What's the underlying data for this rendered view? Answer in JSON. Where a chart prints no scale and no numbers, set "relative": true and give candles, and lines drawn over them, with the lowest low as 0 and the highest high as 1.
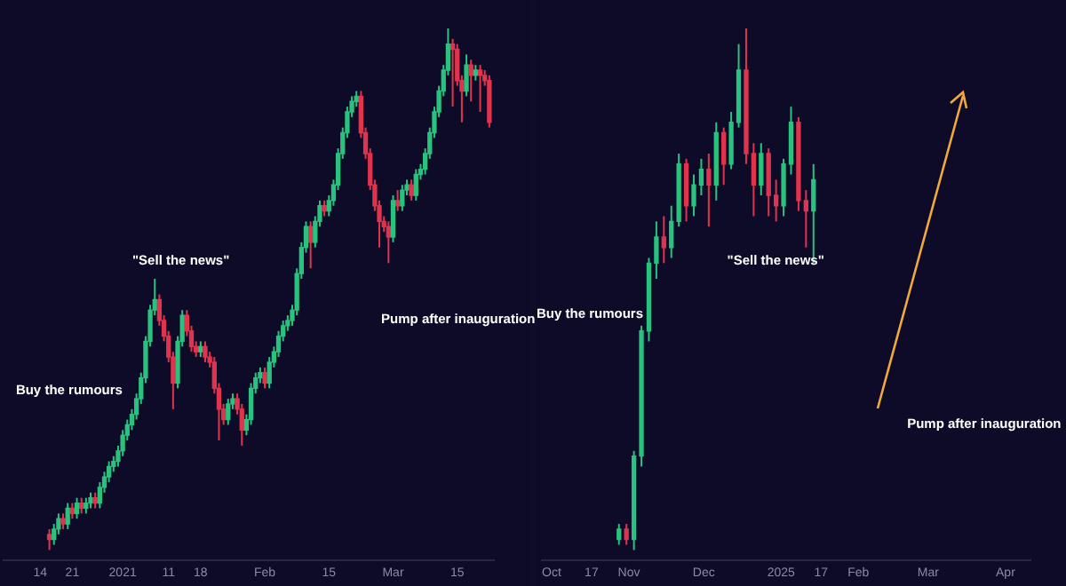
{
  "chart_data": [
    {
      "type": "candlestick",
      "relative": true,
      "xlim": [
        "2020-12-06",
        "2021-03-23"
      ],
      "xticks": [
        {
          "value": "2020-12-14",
          "label": "14"
        },
        {
          "value": "2020-12-21",
          "label": "21"
        },
        {
          "value": "2021-01-01",
          "label": "2021"
        },
        {
          "value": "2021-01-11",
          "label": "11"
        },
        {
          "value": "2021-01-18",
          "label": "18"
        },
        {
          "value": "2021-02-01",
          "label": "Feb"
        },
        {
          "value": "2021-02-15",
          "label": "15"
        },
        {
          "value": "2021-03-01",
          "label": "Mar"
        },
        {
          "value": "2021-03-15",
          "label": "15"
        }
      ],
      "annotations": [
        "Buy the rumours",
        "\"Sell the news\"",
        "Pump after inauguration"
      ],
      "x": [
        "2020-12-16",
        "2020-12-17",
        "2020-12-18",
        "2020-12-19",
        "2020-12-20",
        "2020-12-21",
        "2020-12-22",
        "2020-12-23",
        "2020-12-24",
        "2020-12-25",
        "2020-12-26",
        "2020-12-27",
        "2020-12-28",
        "2020-12-29",
        "2020-12-30",
        "2020-12-31",
        "2021-01-01",
        "2021-01-02",
        "2021-01-03",
        "2021-01-04",
        "2021-01-05",
        "2021-01-06",
        "2021-01-07",
        "2021-01-08",
        "2021-01-09",
        "2021-01-10",
        "2021-01-11",
        "2021-01-12",
        "2021-01-13",
        "2021-01-14",
        "2021-01-15",
        "2021-01-16",
        "2021-01-17",
        "2021-01-18",
        "2021-01-19",
        "2021-01-20",
        "2021-01-21",
        "2021-01-22",
        "2021-01-23",
        "2021-01-24",
        "2021-01-25",
        "2021-01-26",
        "2021-01-27",
        "2021-01-28",
        "2021-01-29",
        "2021-01-30",
        "2021-01-31",
        "2021-02-01",
        "2021-02-02",
        "2021-02-03",
        "2021-02-04",
        "2021-02-05",
        "2021-02-06",
        "2021-02-07",
        "2021-02-08",
        "2021-02-09",
        "2021-02-10",
        "2021-02-11",
        "2021-02-12",
        "2021-02-13",
        "2021-02-14",
        "2021-02-15",
        "2021-02-16",
        "2021-02-17",
        "2021-02-18",
        "2021-02-19",
        "2021-02-20",
        "2021-02-21",
        "2021-02-22",
        "2021-02-23",
        "2021-02-24",
        "2021-02-25",
        "2021-02-26",
        "2021-02-27",
        "2021-02-28",
        "2021-03-01",
        "2021-03-02",
        "2021-03-03",
        "2021-03-04",
        "2021-03-05",
        "2021-03-06",
        "2021-03-07",
        "2021-03-08",
        "2021-03-09",
        "2021-03-10",
        "2021-03-11",
        "2021-03-12",
        "2021-03-13",
        "2021-03-14",
        "2021-03-15",
        "2021-03-16",
        "2021-03-17",
        "2021-03-18",
        "2021-03-19",
        "2021-03-20",
        "2021-03-21",
        "2021-03-22"
      ],
      "ohlc": [
        [
          0.03,
          0.04,
          0,
          0.02
        ],
        [
          0.02,
          0.05,
          0.01,
          0.04
        ],
        [
          0.04,
          0.07,
          0.03,
          0.06
        ],
        [
          0.06,
          0.07,
          0.04,
          0.05
        ],
        [
          0.05,
          0.09,
          0.04,
          0.08
        ],
        [
          0.08,
          0.09,
          0.06,
          0.07
        ],
        [
          0.07,
          0.1,
          0.06,
          0.09
        ],
        [
          0.09,
          0.1,
          0.07,
          0.08
        ],
        [
          0.08,
          0.1,
          0.07,
          0.09
        ],
        [
          0.09,
          0.11,
          0.08,
          0.1
        ],
        [
          0.1,
          0.11,
          0.08,
          0.09
        ],
        [
          0.09,
          0.13,
          0.08,
          0.12
        ],
        [
          0.12,
          0.15,
          0.11,
          0.14
        ],
        [
          0.14,
          0.17,
          0.13,
          0.16
        ],
        [
          0.16,
          0.18,
          0.15,
          0.17
        ],
        [
          0.17,
          0.2,
          0.16,
          0.19
        ],
        [
          0.19,
          0.23,
          0.18,
          0.22
        ],
        [
          0.22,
          0.25,
          0.21,
          0.24
        ],
        [
          0.24,
          0.27,
          0.23,
          0.26
        ],
        [
          0.26,
          0.3,
          0.25,
          0.29
        ],
        [
          0.29,
          0.34,
          0.28,
          0.33
        ],
        [
          0.33,
          0.41,
          0.32,
          0.4
        ],
        [
          0.4,
          0.47,
          0.39,
          0.46
        ],
        [
          0.46,
          0.52,
          0.45,
          0.48
        ],
        [
          0.48,
          0.49,
          0.43,
          0.44
        ],
        [
          0.44,
          0.45,
          0.4,
          0.41
        ],
        [
          0.41,
          0.42,
          0.36,
          0.37
        ],
        [
          0.37,
          0.38,
          0.27,
          0.32
        ],
        [
          0.32,
          0.41,
          0.31,
          0.4
        ],
        [
          0.4,
          0.46,
          0.39,
          0.45
        ],
        [
          0.45,
          0.46,
          0.41,
          0.42
        ],
        [
          0.42,
          0.43,
          0.38,
          0.39
        ],
        [
          0.39,
          0.4,
          0.37,
          0.38
        ],
        [
          0.38,
          0.4,
          0.37,
          0.39
        ],
        [
          0.39,
          0.4,
          0.36,
          0.37
        ],
        [
          0.37,
          0.38,
          0.35,
          0.36
        ],
        [
          0.36,
          0.37,
          0.3,
          0.31
        ],
        [
          0.31,
          0.32,
          0.21,
          0.27
        ],
        [
          0.27,
          0.28,
          0.24,
          0.25
        ],
        [
          0.25,
          0.29,
          0.24,
          0.28
        ],
        [
          0.28,
          0.3,
          0.27,
          0.29
        ],
        [
          0.29,
          0.3,
          0.26,
          0.27
        ],
        [
          0.27,
          0.28,
          0.2,
          0.23
        ],
        [
          0.23,
          0.26,
          0.22,
          0.25
        ],
        [
          0.25,
          0.32,
          0.24,
          0.31
        ],
        [
          0.31,
          0.34,
          0.3,
          0.33
        ],
        [
          0.33,
          0.35,
          0.32,
          0.34
        ],
        [
          0.34,
          0.35,
          0.31,
          0.32
        ],
        [
          0.32,
          0.37,
          0.31,
          0.36
        ],
        [
          0.36,
          0.39,
          0.35,
          0.38
        ],
        [
          0.38,
          0.42,
          0.37,
          0.41
        ],
        [
          0.41,
          0.44,
          0.4,
          0.43
        ],
        [
          0.43,
          0.45,
          0.42,
          0.44
        ],
        [
          0.44,
          0.47,
          0.43,
          0.46
        ],
        [
          0.46,
          0.54,
          0.45,
          0.53
        ],
        [
          0.53,
          0.59,
          0.52,
          0.58
        ],
        [
          0.58,
          0.63,
          0.57,
          0.62
        ],
        [
          0.62,
          0.63,
          0.54,
          0.59
        ],
        [
          0.59,
          0.64,
          0.58,
          0.63
        ],
        [
          0.63,
          0.67,
          0.62,
          0.66
        ],
        [
          0.66,
          0.67,
          0.64,
          0.65
        ],
        [
          0.65,
          0.68,
          0.64,
          0.67
        ],
        [
          0.67,
          0.71,
          0.66,
          0.7
        ],
        [
          0.7,
          0.77,
          0.69,
          0.76
        ],
        [
          0.76,
          0.81,
          0.75,
          0.8
        ],
        [
          0.8,
          0.85,
          0.79,
          0.84
        ],
        [
          0.84,
          0.87,
          0.83,
          0.86
        ],
        [
          0.86,
          0.88,
          0.85,
          0.87
        ],
        [
          0.87,
          0.88,
          0.79,
          0.8
        ],
        [
          0.8,
          0.81,
          0.75,
          0.76
        ],
        [
          0.76,
          0.77,
          0.69,
          0.7
        ],
        [
          0.7,
          0.71,
          0.65,
          0.66
        ],
        [
          0.66,
          0.67,
          0.58,
          0.63
        ],
        [
          0.63,
          0.64,
          0.61,
          0.62
        ],
        [
          0.62,
          0.63,
          0.55,
          0.6
        ],
        [
          0.6,
          0.68,
          0.59,
          0.67
        ],
        [
          0.67,
          0.69,
          0.65,
          0.66
        ],
        [
          0.66,
          0.7,
          0.65,
          0.69
        ],
        [
          0.69,
          0.71,
          0.68,
          0.7
        ],
        [
          0.7,
          0.71,
          0.67,
          0.68
        ],
        [
          0.68,
          0.73,
          0.67,
          0.72
        ],
        [
          0.72,
          0.74,
          0.71,
          0.73
        ],
        [
          0.73,
          0.77,
          0.72,
          0.76
        ],
        [
          0.76,
          0.81,
          0.75,
          0.8
        ],
        [
          0.8,
          0.85,
          0.79,
          0.84
        ],
        [
          0.84,
          0.89,
          0.83,
          0.88
        ],
        [
          0.88,
          0.93,
          0.87,
          0.92
        ],
        [
          0.92,
          1,
          0.91,
          0.97
        ],
        [
          0.97,
          0.98,
          0.85,
          0.96
        ],
        [
          0.96,
          0.97,
          0.89,
          0.9
        ],
        [
          0.9,
          0.91,
          0.82,
          0.88
        ],
        [
          0.88,
          0.95,
          0.87,
          0.93
        ],
        [
          0.93,
          0.94,
          0.86,
          0.91
        ],
        [
          0.91,
          0.93,
          0.9,
          0.92
        ],
        [
          0.92,
          0.93,
          0.84,
          0.91
        ],
        [
          0.91,
          0.92,
          0.89,
          0.9
        ],
        [
          0.9,
          0.91,
          0.81,
          0.82
        ]
      ]
    },
    {
      "type": "candlestick",
      "relative": true,
      "xlim": [
        "2024-09-27",
        "2025-04-11"
      ],
      "xticks": [
        {
          "value": "2024-10-01",
          "label": "Oct"
        },
        {
          "value": "2024-10-17",
          "label": "17"
        },
        {
          "value": "2024-11-01",
          "label": "Nov"
        },
        {
          "value": "2024-12-01",
          "label": "Dec"
        },
        {
          "value": "2025-01-01",
          "label": "2025"
        },
        {
          "value": "2025-01-17",
          "label": "17"
        },
        {
          "value": "2025-02-01",
          "label": "Feb"
        },
        {
          "value": "2025-03-01",
          "label": "Mar"
        },
        {
          "value": "2025-04-01",
          "label": "Apr"
        }
      ],
      "annotations": [
        "Buy the rumours",
        "\"Sell the news\"",
        "Pump after inauguration"
      ],
      "x": [
        "2024-10-28",
        "2024-10-31",
        "2024-11-03",
        "2024-11-06",
        "2024-11-09",
        "2024-11-12",
        "2024-11-15",
        "2024-11-18",
        "2024-11-21",
        "2024-11-24",
        "2024-11-27",
        "2024-11-30",
        "2024-12-03",
        "2024-12-06",
        "2024-12-09",
        "2024-12-12",
        "2024-12-15",
        "2024-12-18",
        "2024-12-21",
        "2024-12-24",
        "2024-12-27",
        "2024-12-30",
        "2025-01-02",
        "2025-01-05",
        "2025-01-08",
        "2025-01-11",
        "2025-01-14"
      ],
      "ohlc": [
        [
          0.02,
          0.05,
          0.01,
          0.04
        ],
        [
          0.04,
          0.05,
          0.01,
          0.02
        ],
        [
          0.02,
          0.19,
          0,
          0.18
        ],
        [
          0.18,
          0.43,
          0.16,
          0.42
        ],
        [
          0.42,
          0.56,
          0.4,
          0.55
        ],
        [
          0.55,
          0.63,
          0.52,
          0.6
        ],
        [
          0.6,
          0.64,
          0.55,
          0.58
        ],
        [
          0.58,
          0.66,
          0.56,
          0.63
        ],
        [
          0.63,
          0.76,
          0.62,
          0.74
        ],
        [
          0.74,
          0.75,
          0.63,
          0.66
        ],
        [
          0.66,
          0.72,
          0.64,
          0.7
        ],
        [
          0.7,
          0.75,
          0.68,
          0.73
        ],
        [
          0.73,
          0.76,
          0.62,
          0.7
        ],
        [
          0.7,
          0.82,
          0.67,
          0.8
        ],
        [
          0.8,
          0.81,
          0.7,
          0.74
        ],
        [
          0.74,
          0.84,
          0.73,
          0.82
        ],
        [
          0.82,
          0.97,
          0.81,
          0.92
        ],
        [
          0.92,
          1,
          0.74,
          0.76
        ],
        [
          0.76,
          0.78,
          0.64,
          0.7
        ],
        [
          0.7,
          0.78,
          0.68,
          0.76
        ],
        [
          0.76,
          0.77,
          0.64,
          0.68
        ],
        [
          0.68,
          0.71,
          0.63,
          0.66
        ],
        [
          0.66,
          0.75,
          0.64,
          0.74
        ],
        [
          0.74,
          0.85,
          0.72,
          0.82
        ],
        [
          0.82,
          0.83,
          0.65,
          0.67
        ],
        [
          0.67,
          0.69,
          0.58,
          0.65
        ],
        [
          0.65,
          0.74,
          0.55,
          0.71
        ]
      ]
    }
  ]
}
